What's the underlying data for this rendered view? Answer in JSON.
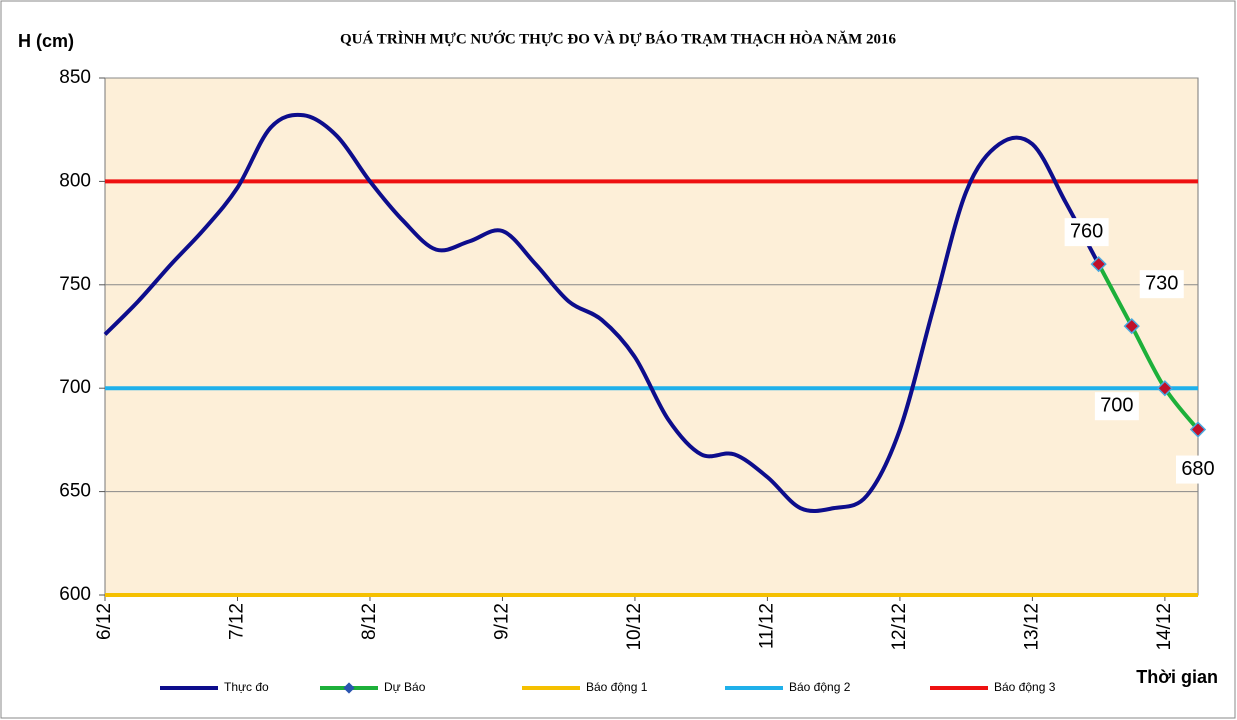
{
  "chart_data": {
    "type": "line",
    "title": "QUÁ TRÌNH MỰC NƯỚC THỰC ĐO VÀ DỰ BÁO TRẠM THẠCH HÒA NĂM 2016",
    "y_label": "H (cm)",
    "x_label": "Thời gian",
    "xlim": [
      0,
      8.25
    ],
    "xticks": [
      {
        "value": 0,
        "label": "6/12"
      },
      {
        "value": 1,
        "label": "7/12"
      },
      {
        "value": 2,
        "label": "8/12"
      },
      {
        "value": 3,
        "label": "9/12"
      },
      {
        "value": 4,
        "label": "10/12"
      },
      {
        "value": 5,
        "label": "11/12"
      },
      {
        "value": 6,
        "label": "12/12"
      },
      {
        "value": 7,
        "label": "13/12"
      },
      {
        "value": 8,
        "label": "14/12"
      }
    ],
    "ylim": [
      600,
      850
    ],
    "yticks": [
      600,
      650,
      700,
      750,
      800,
      850
    ],
    "grid": true,
    "series": [
      {
        "name": "Thực đo",
        "color": "#0d0d8c",
        "x": [
          0,
          0.25,
          0.5,
          0.75,
          1,
          1.25,
          1.5,
          1.75,
          2,
          2.25,
          2.5,
          2.75,
          3,
          3.25,
          3.5,
          3.75,
          4,
          4.25,
          4.5,
          4.75,
          5,
          5.25,
          5.5,
          5.75,
          6,
          6.25,
          6.5,
          6.75,
          7,
          7.25,
          7.5
        ],
        "values": [
          726,
          742,
          760,
          777,
          797,
          826,
          832,
          822,
          800,
          781,
          767,
          771,
          776,
          760,
          742,
          733,
          715,
          685,
          668,
          668,
          657,
          642,
          642,
          648,
          680,
          738,
          795,
          818,
          818,
          790,
          760
        ]
      },
      {
        "name": "Dự Báo",
        "color": "#1db03a",
        "markers": true,
        "data_labels": true,
        "x": [
          7.5,
          7.75,
          8,
          8.25
        ],
        "values": [
          760,
          730,
          700,
          680
        ]
      }
    ],
    "reference_lines": [
      {
        "name": "Báo động 1",
        "color": "#f5c000",
        "value": 600
      },
      {
        "name": "Báo động 2",
        "color": "#1fb0ea",
        "value": 700
      },
      {
        "name": "Báo động 3",
        "color": "#ee1111",
        "value": 800
      }
    ]
  }
}
